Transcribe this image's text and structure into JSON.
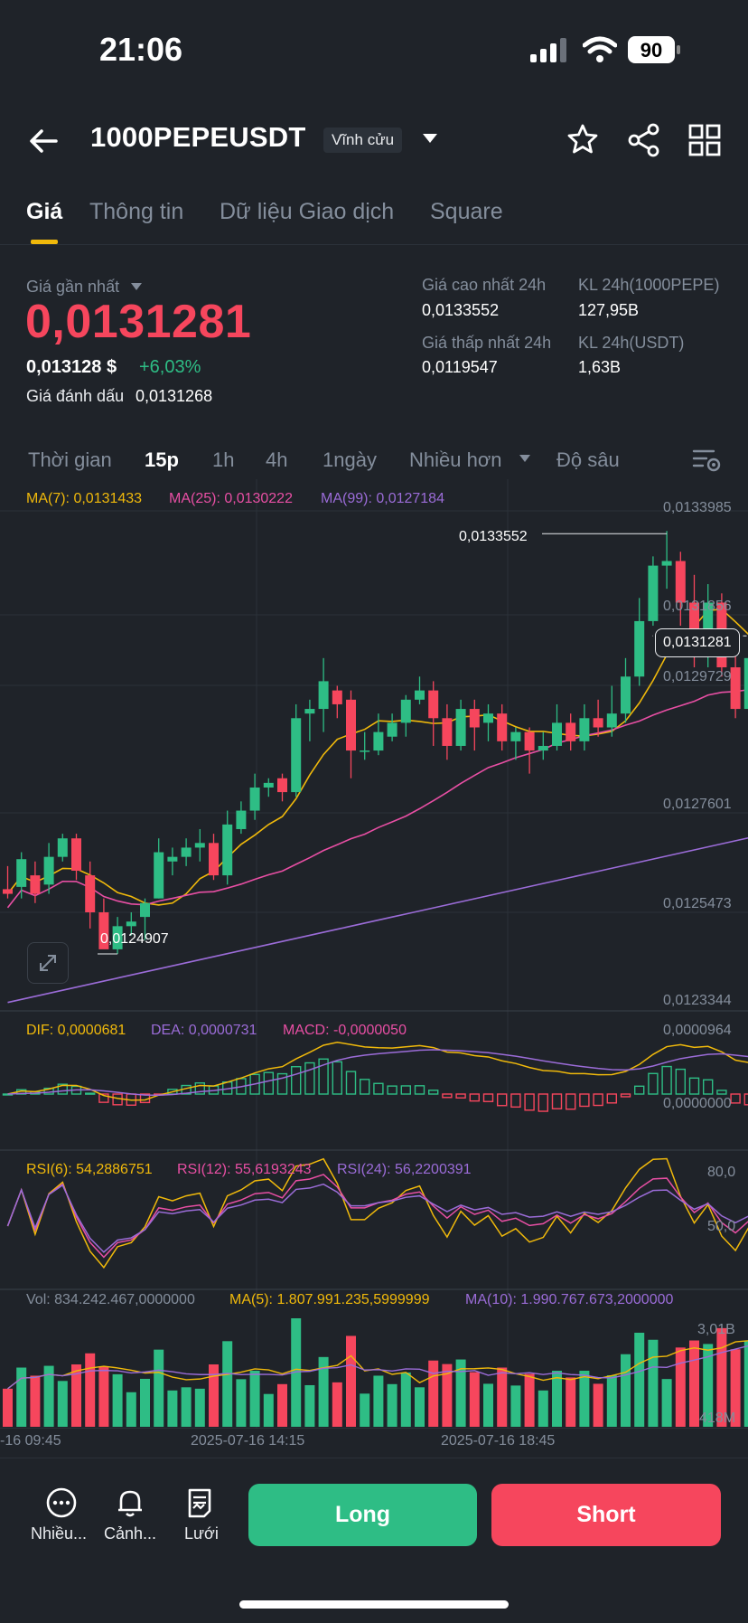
{
  "status": {
    "time": "21:06",
    "battery": "90"
  },
  "header": {
    "symbol": "1000PEPEUSDT",
    "contract_type": "Vĩnh cửu"
  },
  "tabs": [
    {
      "label": "Giá"
    },
    {
      "label": "Thông tin"
    },
    {
      "label": "Dữ liệu Giao dịch"
    },
    {
      "label": "Square"
    }
  ],
  "price": {
    "last_label": "Giá gần nhất",
    "last": "0,0131281",
    "usd": "0,013128 $",
    "change": "+6,03%",
    "mark_label": "Giá đánh dấu",
    "mark": "0,0131268",
    "high_label": "Giá cao nhất 24h",
    "high": "0,0133552",
    "low_label": "Giá thấp nhất 24h",
    "low": "0,0119547",
    "vol_base_label": "KL 24h(1000PEPE)",
    "vol_base": "127,95B",
    "vol_quote_label": "KL 24h(USDT)",
    "vol_quote": "1,63B"
  },
  "timeframes": {
    "time": "Thời gian",
    "m15": "15p",
    "h1": "1h",
    "h4": "4h",
    "d1": "1ngày",
    "more": "Nhiều hơn",
    "depth": "Độ sâu"
  },
  "indicators": {
    "ma7": "MA(7): 0,0131433",
    "ma25": "MA(25): 0,0130222",
    "ma99": "MA(99): 0,0127184",
    "dif": "DIF: 0,0000681",
    "dea": "DEA: 0,0000731",
    "macd": "MACD: -0,0000050",
    "rsi6": "RSI(6): 54,2886751",
    "rsi12": "RSI(12): 55,6193243",
    "rsi24": "RSI(24): 56,2200391",
    "vol": "Vol: 834.242.467,0000000",
    "vma5": "MA(5): 1.807.991.235,5999999",
    "vma10": "MA(10): 1.990.767.673,2000000"
  },
  "axis": {
    "price": [
      "0,0133985",
      "0,0131856",
      "0,0129729",
      "0,0127601",
      "0,0125473",
      "0,0123344"
    ],
    "current_price": "0,0131281",
    "high_marker": "0,0133552",
    "low_marker": "0,0124907",
    "macd": [
      "0,0000964",
      "0,0000000"
    ],
    "rsi": [
      "80,0",
      "50,0"
    ],
    "vol": [
      "3,01B",
      "418M"
    ],
    "time": [
      "-16 09:45",
      "2025-07-16 14:15",
      "2025-07-16 18:45"
    ]
  },
  "colors": {
    "up": "#2ebd85",
    "down": "#f6465d",
    "ma7": "#f0b90b",
    "ma25": "#e84fa4",
    "ma99": "#9b6cd8",
    "accent": "#f0b90b"
  },
  "bottom": {
    "more": "Nhiều...",
    "alert": "Cảnh...",
    "grid": "Lưới",
    "long": "Long",
    "short": "Short"
  },
  "chart_data": {
    "type": "candlestick",
    "candles": [
      [
        0.01258,
        0.01257,
        0.01263,
        0.01256
      ],
      [
        0.012585,
        0.012645,
        0.01266,
        0.01256
      ],
      [
        0.01261,
        0.01257,
        0.01264,
        0.01255
      ],
      [
        0.01259,
        0.01265,
        0.01268,
        0.01257
      ],
      [
        0.01265,
        0.01269,
        0.0127,
        0.01264
      ],
      [
        0.01269,
        0.01262,
        0.0127,
        0.0126
      ],
      [
        0.01261,
        0.01253,
        0.01264,
        0.012495
      ],
      [
        0.01253,
        0.01245,
        0.01256,
        0.012491
      ],
      [
        0.01245,
        0.0125,
        0.01252,
        0.01244
      ],
      [
        0.0125,
        0.01251,
        0.01253,
        0.01248
      ],
      [
        0.01252,
        0.01255,
        0.01256,
        0.01247
      ],
      [
        0.01256,
        0.01266,
        0.01269,
        0.01256
      ],
      [
        0.01264,
        0.01265,
        0.01267,
        0.01261
      ],
      [
        0.01265,
        0.01267,
        0.01269,
        0.01263
      ],
      [
        0.01267,
        0.01268,
        0.01271,
        0.01264
      ],
      [
        0.01268,
        0.01261,
        0.0127,
        0.0126
      ],
      [
        0.01261,
        0.01272,
        0.01275,
        0.01259
      ],
      [
        0.01271,
        0.01275,
        0.01277,
        0.0127
      ],
      [
        0.01275,
        0.0128,
        0.01283,
        0.01273
      ],
      [
        0.0128,
        0.01281,
        0.01282,
        0.01278
      ],
      [
        0.01282,
        0.01279,
        0.01283,
        0.01277
      ],
      [
        0.01279,
        0.01295,
        0.01298,
        0.01278
      ],
      [
        0.01296,
        0.01297,
        0.01299,
        0.0129
      ],
      [
        0.01297,
        0.01303,
        0.01308,
        0.01292
      ],
      [
        0.01301,
        0.01298,
        0.01302,
        0.01295
      ],
      [
        0.01299,
        0.01288,
        0.01301,
        0.01282
      ],
      [
        0.01288,
        0.01288,
        0.01292,
        0.01286
      ],
      [
        0.01288,
        0.01292,
        0.01296,
        0.01287
      ],
      [
        0.01291,
        0.01294,
        0.01296,
        0.0129
      ],
      [
        0.01294,
        0.01299,
        0.013,
        0.01291
      ],
      [
        0.01299,
        0.01301,
        0.01304,
        0.01298
      ],
      [
        0.01301,
        0.01295,
        0.01303,
        0.01289
      ],
      [
        0.01295,
        0.01289,
        0.01298,
        0.01286
      ],
      [
        0.01289,
        0.01297,
        0.01299,
        0.01288
      ],
      [
        0.01297,
        0.01293,
        0.01299,
        0.01288
      ],
      [
        0.01294,
        0.01296,
        0.01298,
        0.0129
      ],
      [
        0.01296,
        0.0129,
        0.01298,
        0.01288
      ],
      [
        0.0129,
        0.01292,
        0.01293,
        0.01286
      ],
      [
        0.01292,
        0.01288,
        0.01293,
        0.01283
      ],
      [
        0.01288,
        0.01289,
        0.01292,
        0.01286
      ],
      [
        0.01289,
        0.01294,
        0.01298,
        0.01288
      ],
      [
        0.01294,
        0.0129,
        0.01296,
        0.01288
      ],
      [
        0.0129,
        0.01295,
        0.01298,
        0.01288
      ],
      [
        0.01295,
        0.01293,
        0.01299,
        0.01291
      ],
      [
        0.01293,
        0.01296,
        0.01302,
        0.01291
      ],
      [
        0.01296,
        0.01304,
        0.01308,
        0.01294
      ],
      [
        0.01304,
        0.01316,
        0.01321,
        0.01302
      ],
      [
        0.01316,
        0.01328,
        0.0133,
        0.01315
      ],
      [
        0.01328,
        0.01329,
        0.013355,
        0.01323
      ],
      [
        0.01329,
        0.0132,
        0.01331,
        0.01315
      ],
      [
        0.0132,
        0.01311,
        0.01326,
        0.01306
      ],
      [
        0.01311,
        0.0132,
        0.01324,
        0.01306
      ],
      [
        0.0132,
        0.01306,
        0.01322,
        0.01304
      ],
      [
        0.01306,
        0.01297,
        0.0131,
        0.01295
      ],
      [
        0.01297,
        0.01308,
        0.01312,
        0.01296
      ],
      [
        0.01308,
        0.013128,
        0.01319,
        0.01306
      ]
    ]
  }
}
